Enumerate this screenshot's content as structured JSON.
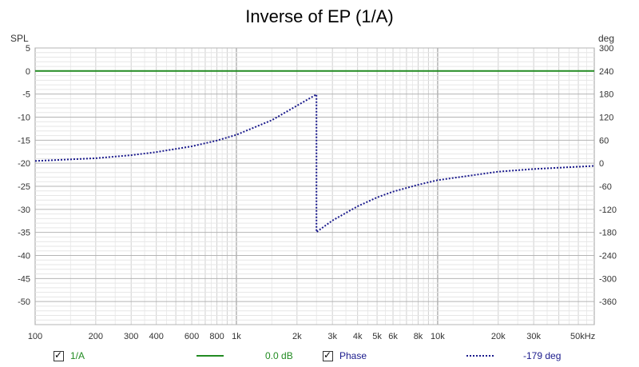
{
  "chart_data": {
    "type": "line",
    "title": "Inverse of EP (1/A)",
    "ylabel_left": "SPL",
    "ylabel_right": "deg",
    "xunit": "kHz",
    "xscale": "log",
    "xlim": [
      100,
      60000
    ],
    "ylim_left": [
      -55,
      5
    ],
    "ylim_right": [
      -420,
      300
    ],
    "grid": true,
    "x_ticks": [
      {
        "v": 100,
        "label": "100"
      },
      {
        "v": 200,
        "label": "200"
      },
      {
        "v": 300,
        "label": "300"
      },
      {
        "v": 400,
        "label": "400"
      },
      {
        "v": 600,
        "label": "600"
      },
      {
        "v": 800,
        "label": "800"
      },
      {
        "v": 1000,
        "label": "1k"
      },
      {
        "v": 2000,
        "label": "2k"
      },
      {
        "v": 3000,
        "label": "3k"
      },
      {
        "v": 4000,
        "label": "4k"
      },
      {
        "v": 5000,
        "label": "5k"
      },
      {
        "v": 6000,
        "label": "6k"
      },
      {
        "v": 8000,
        "label": "8k"
      },
      {
        "v": 10000,
        "label": "10k"
      },
      {
        "v": 20000,
        "label": "20k"
      },
      {
        "v": 30000,
        "label": "30k"
      },
      {
        "v": 50000,
        "label": "50kHz"
      }
    ],
    "y_ticks_left": [
      5,
      0,
      -5,
      -10,
      -15,
      -20,
      -25,
      -30,
      -35,
      -40,
      -45,
      -50
    ],
    "y_ticks_right": [
      300,
      240,
      180,
      120,
      60,
      0,
      -60,
      -120,
      -180,
      -240,
      -300,
      -360
    ],
    "series": [
      {
        "name": "1/A",
        "axis": "left",
        "color": "#228b22",
        "style": "solid",
        "x": [
          100,
          60000
        ],
        "y": [
          0,
          0
        ]
      },
      {
        "name": "Phase",
        "axis": "right",
        "color": "#1a1a8c",
        "style": "dotted",
        "x": [
          100,
          200,
          300,
          400,
          600,
          800,
          1000,
          1500,
          2000,
          2500,
          2500,
          3000,
          4000,
          5000,
          6000,
          8000,
          10000,
          20000,
          30000,
          50000,
          60000
        ],
        "y": [
          6,
          13,
          21,
          29,
          44,
          59,
          74,
          112,
          150,
          179,
          -179,
          -149,
          -112,
          -89,
          -74,
          -56,
          -44,
          -22,
          -15,
          -9,
          -7
        ]
      }
    ]
  },
  "legend": {
    "item1": {
      "label": "1/A",
      "value": "0.0 dB"
    },
    "item2": {
      "label": "Phase",
      "value": "-179 deg"
    }
  },
  "colors": {
    "green": "#228b22",
    "navy": "#1a1a8c",
    "grid_minor": "#d0d0d0",
    "grid_major": "#8c8c8c"
  }
}
